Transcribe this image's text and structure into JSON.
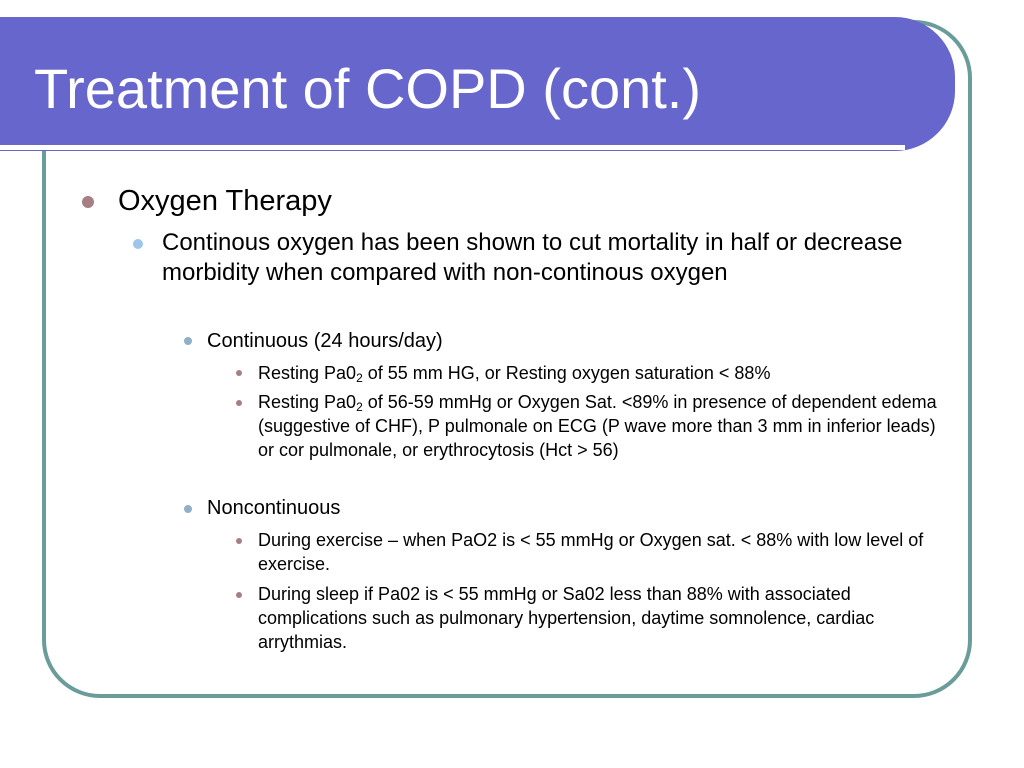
{
  "slide": {
    "title": "Treatment of COPD (cont.)",
    "bullets": {
      "oxygen_therapy": "Oxygen Therapy",
      "continous_oxygen": "Continous oxygen has been shown to cut mortality in half or decrease morbidity when compared with non-continous oxygen",
      "continuous": "Continuous (24 hours/day)",
      "resting1": {
        "prefix": "Resting Pa0",
        "sub": "2",
        "suffix": " of 55 mm HG, or Resting oxygen saturation < 88%"
      },
      "resting2": {
        "prefix": "Resting Pa0",
        "sub": "2",
        "suffix": " of 56-59 mmHg or Oxygen Sat. <89% in presence of dependent edema (suggestive of CHF), P pulmonale on ECG (P wave more than 3 mm in inferior leads) or cor pulmonale, or erythrocytosis (Hct > 56)"
      },
      "noncontinuous": "Noncontinuous",
      "exercise": "During exercise – when PaO2 is < 55 mmHg or Oxygen sat. < 88% with low level of exercise.",
      "sleep": "During sleep if Pa02 is < 55 mmHg or Sa02 less than 88% with associated complications such as pulmonary hypertension, daytime somnolence, cardiac arrythmias."
    }
  },
  "colors": {
    "title_bar": "#6666cc",
    "frame": "#6a9c9a",
    "bullet_l1": "#a67f82",
    "bullet_l2": "#9ec6e8",
    "bullet_l3": "#8fb0c6",
    "bullet_l4": "#a67f82"
  }
}
